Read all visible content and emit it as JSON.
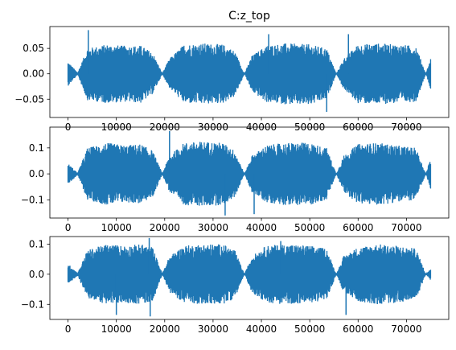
{
  "figure_title": "C:z_top",
  "chart_data": [
    {
      "type": "line",
      "title": "C:z_top",
      "xlabel": "",
      "ylabel": "",
      "color": "#1f77b4",
      "xlim": [
        -3750,
        78750
      ],
      "ylim": [
        -0.086,
        0.093
      ],
      "xticks": [
        0,
        10000,
        20000,
        30000,
        40000,
        50000,
        60000,
        70000
      ],
      "xtick_labels": [
        "0",
        "10000",
        "20000",
        "30000",
        "40000",
        "50000",
        "60000",
        "70000"
      ],
      "yticks": [
        -0.05,
        0.0,
        0.05
      ],
      "ytick_labels": [
        "−0.05",
        "0.00",
        "0.05"
      ],
      "n_samples": 75000,
      "envelope": {
        "x": [
          0,
          2000,
          4000,
          8000,
          12000,
          15000,
          17500,
          19500,
          21000,
          24000,
          28000,
          32000,
          34500,
          36500,
          38000,
          41000,
          45000,
          50000,
          53500,
          55500,
          57000,
          60000,
          64000,
          68000,
          72000,
          74000,
          75000
        ],
        "upper": [
          0.024,
          0.002,
          0.05,
          0.058,
          0.055,
          0.056,
          0.042,
          0.001,
          0.03,
          0.058,
          0.06,
          0.058,
          0.045,
          0.0,
          0.035,
          0.056,
          0.06,
          0.058,
          0.05,
          0.0,
          0.03,
          0.058,
          0.06,
          0.058,
          0.055,
          0.0,
          0.03
        ],
        "lower": [
          -0.024,
          -0.002,
          -0.052,
          -0.058,
          -0.055,
          -0.058,
          -0.04,
          -0.001,
          -0.028,
          -0.058,
          -0.06,
          -0.058,
          -0.045,
          0.0,
          -0.035,
          -0.056,
          -0.06,
          -0.062,
          -0.05,
          0.0,
          -0.03,
          -0.058,
          -0.06,
          -0.058,
          -0.055,
          0.0,
          -0.03
        ]
      },
      "spikes": [
        {
          "x": 4200,
          "y": 0.086
        },
        {
          "x": 41500,
          "y": 0.078
        },
        {
          "x": 53500,
          "y": -0.075
        },
        {
          "x": 58000,
          "y": 0.078
        }
      ]
    },
    {
      "type": "line",
      "title": "",
      "xlabel": "",
      "ylabel": "",
      "color": "#1f77b4",
      "xlim": [
        -3750,
        78750
      ],
      "ylim": [
        -0.17,
        0.18
      ],
      "xticks": [
        0,
        10000,
        20000,
        30000,
        40000,
        50000,
        60000,
        70000
      ],
      "xtick_labels": [
        "0",
        "10000",
        "20000",
        "30000",
        "40000",
        "50000",
        "60000",
        "70000"
      ],
      "yticks": [
        -0.1,
        0.0,
        0.1
      ],
      "ytick_labels": [
        "−0.1",
        "0.0",
        "0.1"
      ],
      "n_samples": 75000,
      "envelope": {
        "x": [
          0,
          2000,
          4000,
          8000,
          12000,
          15000,
          17500,
          19500,
          21000,
          24000,
          28000,
          32000,
          34500,
          36500,
          38000,
          41000,
          45000,
          50000,
          53500,
          55500,
          57000,
          60000,
          64000,
          68000,
          72000,
          74000,
          75000
        ],
        "upper": [
          0.04,
          0.004,
          0.1,
          0.12,
          0.11,
          0.115,
          0.09,
          0.002,
          0.07,
          0.12,
          0.125,
          0.12,
          0.09,
          0.0,
          0.07,
          0.11,
          0.12,
          0.12,
          0.1,
          0.0,
          0.07,
          0.115,
          0.12,
          0.11,
          0.1,
          0.0,
          0.06
        ],
        "lower": [
          -0.04,
          -0.004,
          -0.1,
          -0.12,
          -0.11,
          -0.115,
          -0.09,
          -0.002,
          -0.07,
          -0.12,
          -0.125,
          -0.12,
          -0.09,
          0.0,
          -0.07,
          -0.11,
          -0.12,
          -0.12,
          -0.1,
          0.0,
          -0.07,
          -0.115,
          -0.12,
          -0.11,
          -0.1,
          0.0,
          -0.06
        ]
      },
      "spikes": [
        {
          "x": 21000,
          "y": 0.165
        },
        {
          "x": 32500,
          "y": -0.16
        },
        {
          "x": 38500,
          "y": -0.155
        }
      ]
    },
    {
      "type": "line",
      "title": "",
      "xlabel": "",
      "ylabel": "",
      "color": "#1f77b4",
      "xlim": [
        -3750,
        78750
      ],
      "ylim": [
        -0.15,
        0.125
      ],
      "xticks": [
        0,
        10000,
        20000,
        30000,
        40000,
        50000,
        60000,
        70000
      ],
      "xtick_labels": [
        "0",
        "10000",
        "20000",
        "30000",
        "40000",
        "50000",
        "60000",
        "70000"
      ],
      "yticks": [
        -0.1,
        0.0,
        0.1
      ],
      "ytick_labels": [
        "−0.1",
        "0.0",
        "0.1"
      ],
      "n_samples": 75000,
      "envelope": {
        "x": [
          0,
          2000,
          4000,
          8000,
          12000,
          15000,
          17500,
          19500,
          21000,
          24000,
          28000,
          32000,
          34500,
          36500,
          38000,
          41000,
          45000,
          50000,
          53500,
          55500,
          57000,
          60000,
          64000,
          68000,
          72000,
          74000,
          75000
        ],
        "upper": [
          0.035,
          0.004,
          0.08,
          0.1,
          0.095,
          0.1,
          0.09,
          0.002,
          0.06,
          0.095,
          0.1,
          0.1,
          0.08,
          0.0,
          0.06,
          0.095,
          0.1,
          0.095,
          0.085,
          0.0,
          0.06,
          0.09,
          0.1,
          0.095,
          0.085,
          0.0,
          0.02
        ],
        "lower": [
          -0.035,
          -0.004,
          -0.08,
          -0.1,
          -0.095,
          -0.1,
          -0.09,
          -0.002,
          -0.06,
          -0.095,
          -0.1,
          -0.1,
          -0.08,
          0.0,
          -0.06,
          -0.095,
          -0.1,
          -0.095,
          -0.085,
          0.0,
          -0.06,
          -0.09,
          -0.1,
          -0.095,
          -0.085,
          0.0,
          -0.02
        ]
      },
      "spikes": [
        {
          "x": 10000,
          "y": -0.135
        },
        {
          "x": 16800,
          "y": 0.12
        },
        {
          "x": 17000,
          "y": -0.14
        },
        {
          "x": 44000,
          "y": 0.11
        },
        {
          "x": 57500,
          "y": -0.135
        }
      ]
    }
  ]
}
